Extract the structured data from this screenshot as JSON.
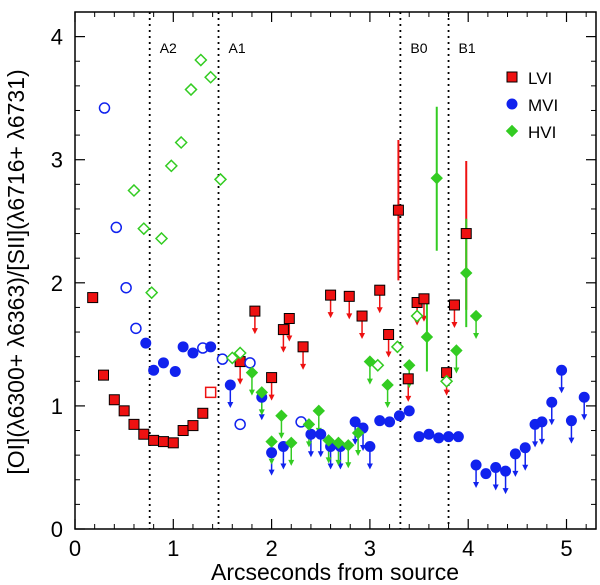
{
  "chart_data": {
    "type": "scatter",
    "xlabel": "Arcseconds from source",
    "ylabel": "[OI](λ6300+ λ6363)/[SII](λ6716+ λ6731)",
    "xlim": [
      0,
      5.3
    ],
    "ylim": [
      0,
      4.2
    ],
    "x_ticks": [
      "0",
      "1",
      "2",
      "3",
      "4",
      "5"
    ],
    "y_ticks": [
      "0",
      "1",
      "2",
      "3",
      "4"
    ],
    "legend_position": "top-right",
    "grid": false,
    "markers": [
      {
        "label": "A2",
        "x": 0.76
      },
      {
        "label": "A1",
        "x": 1.46
      },
      {
        "label": "B0",
        "x": 3.31
      },
      {
        "label": "B1",
        "x": 3.8
      }
    ],
    "series": [
      {
        "name": "LVI",
        "shape": "square",
        "color": "#ee1111",
        "points": [
          {
            "x": 0.18,
            "y": 1.88,
            "fill": true
          },
          {
            "x": 0.29,
            "y": 1.25,
            "fill": true
          },
          {
            "x": 0.4,
            "y": 1.05,
            "fill": true
          },
          {
            "x": 0.5,
            "y": 0.96,
            "fill": true
          },
          {
            "x": 0.6,
            "y": 0.85,
            "fill": true
          },
          {
            "x": 0.7,
            "y": 0.77,
            "fill": true
          },
          {
            "x": 0.8,
            "y": 0.72,
            "fill": true
          },
          {
            "x": 0.9,
            "y": 0.71,
            "fill": true
          },
          {
            "x": 1.0,
            "y": 0.7,
            "fill": true
          },
          {
            "x": 1.1,
            "y": 0.8,
            "fill": true
          },
          {
            "x": 1.2,
            "y": 0.84,
            "fill": true
          },
          {
            "x": 1.3,
            "y": 0.94,
            "fill": true
          },
          {
            "x": 1.38,
            "y": 1.11,
            "fill": false
          },
          {
            "x": 1.68,
            "y": 1.36,
            "fill": true,
            "upper": true
          },
          {
            "x": 1.83,
            "y": 1.77,
            "fill": true,
            "upper": true
          },
          {
            "x": 2.0,
            "y": 1.23,
            "fill": true,
            "upper": true
          },
          {
            "x": 2.12,
            "y": 1.62,
            "fill": true,
            "upper": true
          },
          {
            "x": 2.18,
            "y": 1.71,
            "fill": true,
            "upper": true
          },
          {
            "x": 2.32,
            "y": 1.48,
            "fill": true,
            "upper": true
          },
          {
            "x": 2.6,
            "y": 1.9,
            "fill": true,
            "upper": true
          },
          {
            "x": 2.79,
            "y": 1.89,
            "fill": true,
            "upper": true
          },
          {
            "x": 2.92,
            "y": 1.73,
            "fill": true,
            "upper": true
          },
          {
            "x": 3.1,
            "y": 1.94,
            "fill": true,
            "upper": true
          },
          {
            "x": 3.19,
            "y": 1.58,
            "fill": true,
            "upper": true
          },
          {
            "x": 3.29,
            "y": 2.59,
            "fill": true,
            "err": [
              2.02,
              3.16
            ]
          },
          {
            "x": 3.39,
            "y": 1.22,
            "fill": true,
            "upper": true
          },
          {
            "x": 3.48,
            "y": 1.84,
            "fill": true,
            "upper": true
          },
          {
            "x": 3.55,
            "y": 1.87,
            "fill": true,
            "upper": true
          },
          {
            "x": 3.78,
            "y": 1.27,
            "fill": true,
            "upper": true
          },
          {
            "x": 3.86,
            "y": 1.82,
            "fill": true,
            "upper": true
          },
          {
            "x": 3.98,
            "y": 2.4,
            "fill": true,
            "err": [
              1.78,
              2.99
            ]
          }
        ]
      },
      {
        "name": "MVI",
        "shape": "circle",
        "color": "#1122ee",
        "points": [
          {
            "x": 0.3,
            "y": 3.42,
            "fill": false
          },
          {
            "x": 0.42,
            "y": 2.45,
            "fill": false
          },
          {
            "x": 0.52,
            "y": 1.96,
            "fill": false
          },
          {
            "x": 0.62,
            "y": 1.63,
            "fill": false
          },
          {
            "x": 0.72,
            "y": 1.51,
            "fill": true
          },
          {
            "x": 0.8,
            "y": 1.29,
            "fill": true
          },
          {
            "x": 0.9,
            "y": 1.35,
            "fill": true
          },
          {
            "x": 1.02,
            "y": 1.28,
            "fill": true
          },
          {
            "x": 1.1,
            "y": 1.48,
            "fill": true
          },
          {
            "x": 1.2,
            "y": 1.43,
            "fill": true
          },
          {
            "x": 1.3,
            "y": 1.47,
            "fill": false
          },
          {
            "x": 1.38,
            "y": 1.48,
            "fill": true
          },
          {
            "x": 1.5,
            "y": 1.38,
            "fill": false
          },
          {
            "x": 1.58,
            "y": 1.17,
            "fill": true,
            "upper": true
          },
          {
            "x": 1.68,
            "y": 0.85,
            "fill": false
          },
          {
            "x": 1.78,
            "y": 1.35,
            "fill": false
          },
          {
            "x": 1.9,
            "y": 1.07,
            "fill": true,
            "upper": true
          },
          {
            "x": 2.0,
            "y": 0.62,
            "fill": true,
            "upper": true
          },
          {
            "x": 2.12,
            "y": 0.67,
            "fill": true,
            "upper": true
          },
          {
            "x": 2.3,
            "y": 0.87,
            "fill": false
          },
          {
            "x": 2.4,
            "y": 0.77,
            "fill": true,
            "upper": true
          },
          {
            "x": 2.5,
            "y": 0.77,
            "fill": true,
            "upper": true
          },
          {
            "x": 2.6,
            "y": 0.67,
            "fill": true,
            "upper": true
          },
          {
            "x": 2.7,
            "y": 0.67,
            "fill": true,
            "upper": true
          },
          {
            "x": 2.85,
            "y": 0.87,
            "fill": true,
            "upper": true
          },
          {
            "x": 2.93,
            "y": 0.82,
            "fill": true,
            "upper": true
          },
          {
            "x": 3.0,
            "y": 0.67,
            "fill": true,
            "upper": true
          },
          {
            "x": 3.1,
            "y": 0.88,
            "fill": true
          },
          {
            "x": 3.2,
            "y": 0.87,
            "fill": true
          },
          {
            "x": 3.3,
            "y": 0.92,
            "fill": true
          },
          {
            "x": 3.4,
            "y": 0.96,
            "fill": true
          },
          {
            "x": 3.5,
            "y": 0.75,
            "fill": true
          },
          {
            "x": 3.6,
            "y": 0.77,
            "fill": true
          },
          {
            "x": 3.7,
            "y": 0.74,
            "fill": true
          },
          {
            "x": 3.8,
            "y": 0.75,
            "fill": true
          },
          {
            "x": 3.9,
            "y": 0.75,
            "fill": true
          },
          {
            "x": 4.08,
            "y": 0.52,
            "fill": true,
            "upper": true
          },
          {
            "x": 4.18,
            "y": 0.45,
            "fill": true
          },
          {
            "x": 4.28,
            "y": 0.5,
            "fill": true,
            "upper": true
          },
          {
            "x": 4.38,
            "y": 0.47,
            "fill": true,
            "upper": true
          },
          {
            "x": 4.48,
            "y": 0.61,
            "fill": true,
            "upper": true
          },
          {
            "x": 4.58,
            "y": 0.66,
            "fill": true,
            "upper": true
          },
          {
            "x": 4.68,
            "y": 0.85,
            "fill": true,
            "upper": true
          },
          {
            "x": 4.75,
            "y": 0.87,
            "fill": true,
            "upper": true
          },
          {
            "x": 4.85,
            "y": 1.03,
            "fill": true,
            "upper": true
          },
          {
            "x": 4.95,
            "y": 1.29,
            "fill": true,
            "upper": true
          },
          {
            "x": 5.05,
            "y": 0.88,
            "fill": true,
            "upper": true
          },
          {
            "x": 5.18,
            "y": 1.07,
            "fill": true,
            "upper": true
          }
        ]
      },
      {
        "name": "HVI",
        "shape": "diamond",
        "color": "#33cc22",
        "points": [
          {
            "x": 0.6,
            "y": 2.75,
            "fill": false
          },
          {
            "x": 0.7,
            "y": 2.44,
            "fill": false
          },
          {
            "x": 0.78,
            "y": 1.92,
            "fill": false
          },
          {
            "x": 0.88,
            "y": 2.36,
            "fill": false
          },
          {
            "x": 0.98,
            "y": 2.95,
            "fill": false
          },
          {
            "x": 1.08,
            "y": 3.14,
            "fill": false
          },
          {
            "x": 1.18,
            "y": 3.57,
            "fill": false
          },
          {
            "x": 1.28,
            "y": 3.81,
            "fill": false
          },
          {
            "x": 1.38,
            "y": 3.67,
            "fill": false
          },
          {
            "x": 1.48,
            "y": 2.84,
            "fill": false
          },
          {
            "x": 1.6,
            "y": 1.39,
            "fill": false
          },
          {
            "x": 1.68,
            "y": 1.43,
            "fill": false
          },
          {
            "x": 1.8,
            "y": 1.27,
            "fill": true,
            "upper": true
          },
          {
            "x": 1.9,
            "y": 1.11,
            "fill": true,
            "upper": true
          },
          {
            "x": 2.0,
            "y": 0.71,
            "fill": true,
            "upper": true
          },
          {
            "x": 2.1,
            "y": 0.92,
            "fill": true,
            "upper": true
          },
          {
            "x": 2.2,
            "y": 0.7,
            "fill": true,
            "upper": true
          },
          {
            "x": 2.38,
            "y": 0.85,
            "fill": true,
            "upper": true
          },
          {
            "x": 2.48,
            "y": 0.96,
            "fill": true,
            "upper": true
          },
          {
            "x": 2.58,
            "y": 0.72,
            "fill": true,
            "upper": true
          },
          {
            "x": 2.68,
            "y": 0.7,
            "fill": true,
            "upper": true
          },
          {
            "x": 2.78,
            "y": 0.68,
            "fill": true,
            "upper": true
          },
          {
            "x": 2.88,
            "y": 0.78,
            "fill": true,
            "upper": true
          },
          {
            "x": 3.0,
            "y": 1.36,
            "fill": true,
            "upper": true
          },
          {
            "x": 3.08,
            "y": 1.33,
            "fill": false
          },
          {
            "x": 3.18,
            "y": 1.17,
            "fill": true,
            "upper": true
          },
          {
            "x": 3.28,
            "y": 1.48,
            "fill": false
          },
          {
            "x": 3.4,
            "y": 1.33,
            "fill": true,
            "upper": true
          },
          {
            "x": 3.48,
            "y": 1.73,
            "fill": false
          },
          {
            "x": 3.58,
            "y": 1.56,
            "fill": true,
            "err": [
              1.28,
              1.84
            ]
          },
          {
            "x": 3.68,
            "y": 2.85,
            "fill": true,
            "err": [
              2.26,
              3.43
            ]
          },
          {
            "x": 3.78,
            "y": 1.2,
            "fill": false
          },
          {
            "x": 3.88,
            "y": 1.45,
            "fill": true,
            "upper": true
          },
          {
            "x": 3.98,
            "y": 2.08,
            "fill": true,
            "err": [
              1.64,
              2.52
            ]
          },
          {
            "x": 4.08,
            "y": 1.73,
            "fill": true,
            "upper": true
          }
        ]
      }
    ]
  }
}
